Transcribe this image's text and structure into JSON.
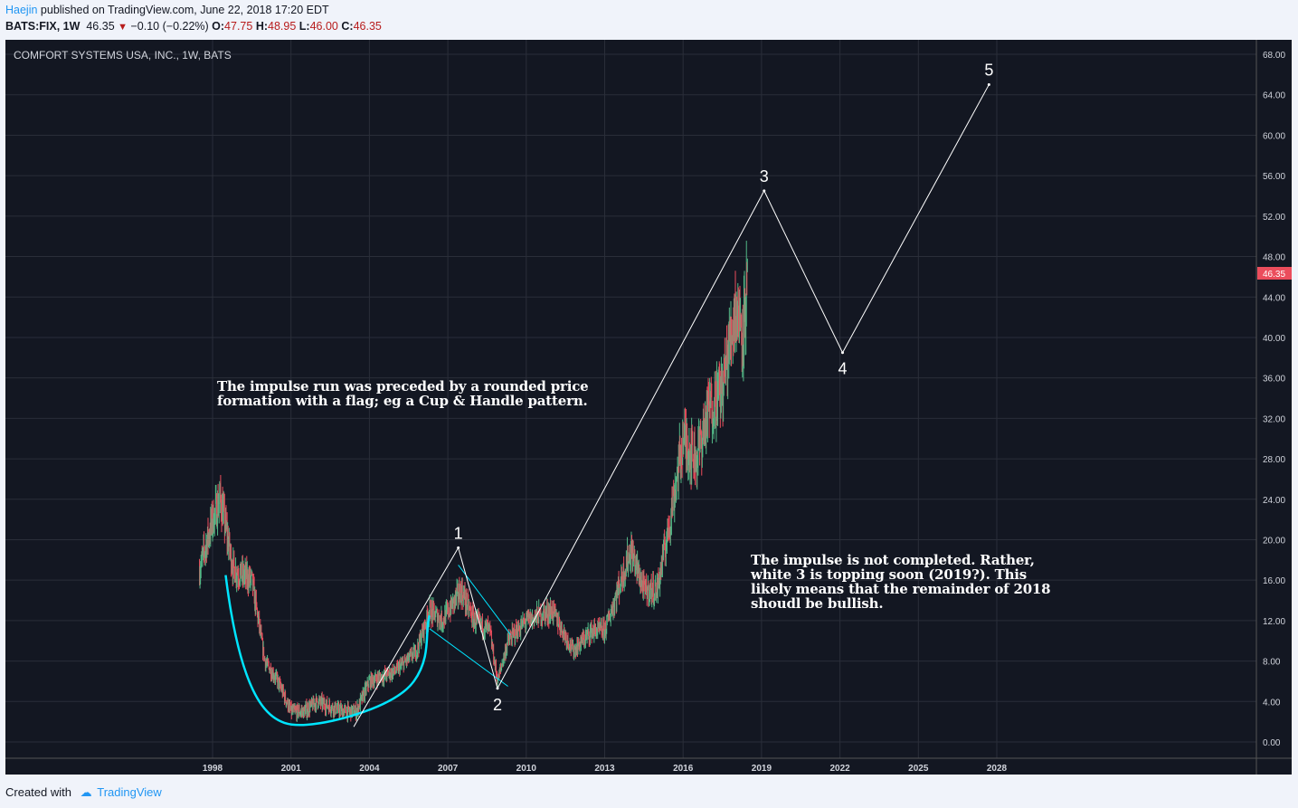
{
  "header": {
    "author": "Haejin",
    "published": "published on TradingView.com, June 22, 2018 17:20 EDT",
    "symbol": "BATS:FIX, 1W",
    "last": "46.35",
    "change": "−0.10 (−0.22%)",
    "o_label": "O:",
    "o": "47.75",
    "h_label": "H:",
    "h": "48.95",
    "l_label": "L:",
    "l": "46.00",
    "c_label": "C:",
    "c": "46.35"
  },
  "footer": {
    "created": "Created with",
    "brand": "TradingView"
  },
  "chart_data": {
    "type": "candlestick",
    "title": "COMFORT SYSTEMS USA, INC., 1W, BATS",
    "ylim": [
      -1,
      69
    ],
    "yticks": [
      "0.00",
      "4.00",
      "8.00",
      "12.00",
      "16.00",
      "20.00",
      "24.00",
      "28.00",
      "32.00",
      "36.00",
      "40.00",
      "44.00",
      "48.00",
      "52.00",
      "56.00",
      "60.00",
      "64.00",
      "68.00"
    ],
    "xticks": [
      "1998",
      "2001",
      "2004",
      "2007",
      "2010",
      "2013",
      "2016",
      "2019",
      "2022",
      "2025",
      "2028"
    ],
    "last_price": "46.35",
    "price_path": [
      [
        1997.5,
        17
      ],
      [
        1998,
        22
      ],
      [
        1998.3,
        24
      ],
      [
        1998.8,
        17
      ],
      [
        1999.5,
        16
      ],
      [
        2000,
        8
      ],
      [
        2000.5,
        6
      ],
      [
        2001,
        3
      ],
      [
        2001.5,
        3
      ],
      [
        2002,
        4
      ],
      [
        2003,
        3
      ],
      [
        2003.5,
        3
      ],
      [
        2004,
        6
      ],
      [
        2005,
        7
      ],
      [
        2005.8,
        9
      ],
      [
        2006.3,
        13
      ],
      [
        2006.8,
        12
      ],
      [
        2007.5,
        15
      ],
      [
        2008,
        12
      ],
      [
        2008.6,
        11
      ],
      [
        2008.9,
        6
      ],
      [
        2009.3,
        10
      ],
      [
        2010,
        12
      ],
      [
        2011,
        13
      ],
      [
        2011.8,
        9
      ],
      [
        2012.5,
        11
      ],
      [
        2013,
        11
      ],
      [
        2013.5,
        15
      ],
      [
        2014,
        19
      ],
      [
        2014.5,
        15
      ],
      [
        2015,
        15
      ],
      [
        2015.5,
        22
      ],
      [
        2016,
        30
      ],
      [
        2016.5,
        28
      ],
      [
        2017,
        33
      ],
      [
        2017.5,
        35
      ],
      [
        2018,
        43
      ],
      [
        2018.3,
        41
      ],
      [
        2018.5,
        46.35
      ]
    ],
    "wave": [
      {
        "label": "1",
        "x": 2007.4,
        "y": 19.2
      },
      {
        "label": "2",
        "x": 2008.9,
        "y": 5.3
      },
      {
        "label": "3",
        "x": 2019.1,
        "y": 54.5
      },
      {
        "label": "4",
        "x": 2022.1,
        "y": 38.5
      },
      {
        "label": "5",
        "x": 2027.7,
        "y": 65
      }
    ],
    "wave_start": [
      2003.4,
      1.5
    ],
    "annotations": [
      "The impulse run was preceded by a rounded price formation with a flag; eg a Cup & Handle pattern.",
      "The impulse is not completed. Rather, white 3 is topping soon (2019?). This likely means that the remainder of 2018 shoudl be bullish."
    ],
    "colors": {
      "bg": "#131722",
      "up": "#53b987",
      "down": "#eb4d5c",
      "wave": "#ffffff",
      "cup": "#00e5ff",
      "last": "#eb4d5c"
    }
  }
}
